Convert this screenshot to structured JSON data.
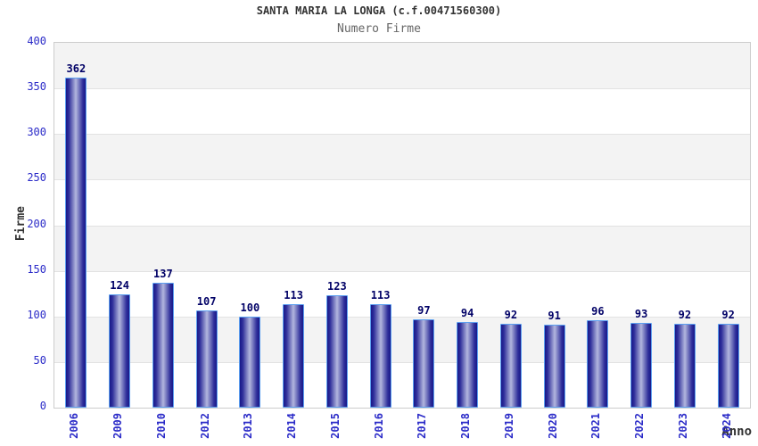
{
  "chart_data": {
    "type": "bar",
    "title": "SANTA MARIA LA LONGA (c.f.00471560300)",
    "subtitle": "Numero Firme",
    "xlabel": "Anno",
    "ylabel": "Firme",
    "categories": [
      "2006",
      "2009",
      "2010",
      "2012",
      "2013",
      "2014",
      "2015",
      "2016",
      "2017",
      "2018",
      "2019",
      "2020",
      "2021",
      "2022",
      "2023",
      "2024"
    ],
    "values": [
      362,
      124,
      137,
      107,
      100,
      113,
      123,
      113,
      97,
      94,
      92,
      91,
      96,
      93,
      92,
      92
    ],
    "ylim": [
      0,
      400
    ],
    "ytick_step": 50,
    "yticks": [
      0,
      50,
      100,
      150,
      200,
      250,
      300,
      350,
      400
    ],
    "legend": "none",
    "grid": "horizontal-alternating-bands",
    "colors": {
      "bar_edge": "#191989",
      "bar_mid": "#2e2e9a",
      "bar_center": "#b2b6de",
      "bar_border": "#5b9ff0",
      "tick_label": "#2b2bc8",
      "value_label": "#000066",
      "title": "#333333",
      "subtitle": "#666666",
      "axis_title": "#333333",
      "band_gray": "#f3f3f3",
      "gridline": "#e2e2e2",
      "plot_border": "#cccccc",
      "background": "#ffffff"
    }
  }
}
